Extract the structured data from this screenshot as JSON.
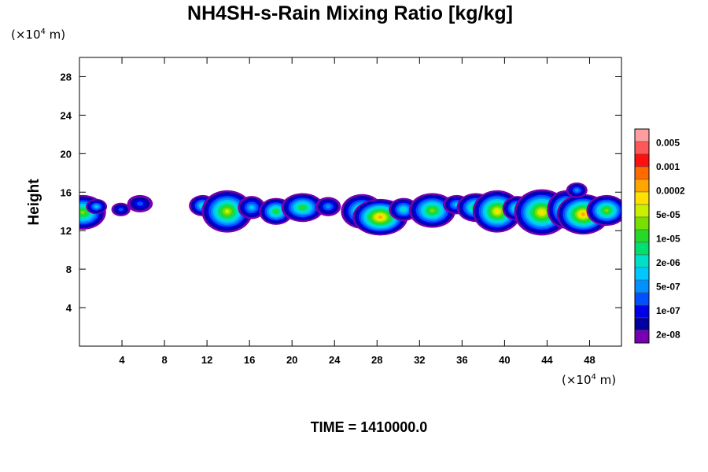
{
  "chart_data": {
    "type": "heatmap",
    "title": "NH4SH-s-Rain Mixing Ratio [kg/kg]",
    "xlabel": "",
    "ylabel": "Height",
    "x_unit": {
      "prefix": "(×10",
      "exp": "4",
      "suffix": " m)"
    },
    "y_unit": {
      "prefix": "(×10",
      "exp": "4",
      "suffix": " m)"
    },
    "xlim": [
      0,
      51
    ],
    "ylim": [
      0,
      30
    ],
    "x_ticks": [
      4,
      8,
      12,
      16,
      20,
      24,
      28,
      32,
      36,
      40,
      44,
      48
    ],
    "y_ticks": [
      4,
      8,
      12,
      16,
      20,
      24,
      28
    ],
    "colorbar": {
      "labels": [
        "0.005",
        "0.001",
        "0.0002",
        "5e-05",
        "1e-05",
        "2e-06",
        "5e-07",
        "1e-07",
        "2e-08"
      ],
      "levels_top_to_bottom": [
        "#ff9ea0",
        "#ff5858",
        "#ff1010",
        "#ff6a00",
        "#ffa500",
        "#ffe000",
        "#c8f000",
        "#78e000",
        "#28d828",
        "#00e070",
        "#00e0c8",
        "#00c8ff",
        "#0090ff",
        "#0050ff",
        "#0000e8",
        "#0000a0",
        "#7800b4"
      ]
    },
    "field": [
      {
        "x": 0.3,
        "y": 13.9,
        "w": 2.2,
        "h": 1.8,
        "peak": 10
      },
      {
        "x": 1.6,
        "y": 14.5,
        "w": 1.0,
        "h": 0.8,
        "peak": 6
      },
      {
        "x": 3.9,
        "y": 14.2,
        "w": 0.9,
        "h": 0.7,
        "peak": 4
      },
      {
        "x": 5.7,
        "y": 14.8,
        "w": 1.2,
        "h": 0.9,
        "peak": 4
      },
      {
        "x": 11.6,
        "y": 14.6,
        "w": 1.3,
        "h": 1.1,
        "peak": 7
      },
      {
        "x": 13.9,
        "y": 14.0,
        "w": 2.4,
        "h": 2.2,
        "peak": 11
      },
      {
        "x": 16.2,
        "y": 14.4,
        "w": 1.3,
        "h": 1.2,
        "peak": 6
      },
      {
        "x": 18.5,
        "y": 14.0,
        "w": 1.6,
        "h": 1.4,
        "peak": 9
      },
      {
        "x": 21.0,
        "y": 14.4,
        "w": 2.0,
        "h": 1.5,
        "peak": 9
      },
      {
        "x": 23.4,
        "y": 14.5,
        "w": 1.2,
        "h": 1.0,
        "peak": 5
      },
      {
        "x": 26.6,
        "y": 14.0,
        "w": 2.0,
        "h": 1.8,
        "peak": 9
      },
      {
        "x": 28.3,
        "y": 13.4,
        "w": 2.6,
        "h": 1.9,
        "peak": 13
      },
      {
        "x": 30.5,
        "y": 14.2,
        "w": 1.4,
        "h": 1.2,
        "peak": 7
      },
      {
        "x": 33.2,
        "y": 14.1,
        "w": 2.2,
        "h": 1.8,
        "peak": 10
      },
      {
        "x": 35.5,
        "y": 14.7,
        "w": 1.3,
        "h": 1.0,
        "peak": 6
      },
      {
        "x": 37.3,
        "y": 14.4,
        "w": 1.8,
        "h": 1.5,
        "peak": 9
      },
      {
        "x": 39.3,
        "y": 14.0,
        "w": 2.3,
        "h": 2.2,
        "peak": 12
      },
      {
        "x": 41.2,
        "y": 14.3,
        "w": 1.4,
        "h": 1.3,
        "peak": 8
      },
      {
        "x": 43.5,
        "y": 13.9,
        "w": 2.6,
        "h": 2.4,
        "peak": 12
      },
      {
        "x": 45.8,
        "y": 14.2,
        "w": 1.8,
        "h": 2.0,
        "peak": 10
      },
      {
        "x": 47.4,
        "y": 13.7,
        "w": 2.5,
        "h": 2.1,
        "peak": 13
      },
      {
        "x": 49.6,
        "y": 14.1,
        "w": 1.9,
        "h": 1.6,
        "peak": 10
      },
      {
        "x": 46.8,
        "y": 16.2,
        "w": 1.0,
        "h": 0.8,
        "peak": 5
      }
    ],
    "footer": {
      "label": "TIME = ",
      "value": "1410000.0"
    }
  }
}
